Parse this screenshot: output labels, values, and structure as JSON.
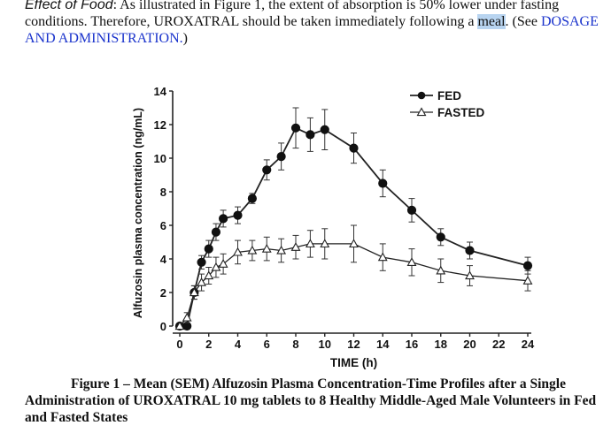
{
  "paragraph": {
    "lead": "Effect of Food",
    "sentence1": ":  As illustrated in Figure 1, the extent of absorption is 50% lower under fasting conditions.  Therefore, UROXATRAL should be taken immediately following a ",
    "highlight": "meal",
    "sentence2": ". (See ",
    "link": "DOSAGE AND ADMINISTRATION.",
    "sentence3": ")"
  },
  "caption": "Figure 1 – Mean (SEM) Alfuzosin Plasma Concentration-Time Profiles after a Single Administration of UROXATRAL 10 mg tablets to 8 Healthy Middle-Aged Male Volunteers in Fed and Fasted States",
  "chart_data": {
    "type": "line",
    "title": "",
    "xlabel": "TIME (h)",
    "ylabel": "Alfuzosin plasma concentration (ng/mL)",
    "xlim": [
      0,
      24
    ],
    "ylim": [
      0,
      14
    ],
    "xticks": [
      0,
      2,
      4,
      6,
      8,
      10,
      12,
      14,
      16,
      18,
      20,
      22,
      24
    ],
    "yticks": [
      0,
      2,
      4,
      6,
      8,
      10,
      12,
      14
    ],
    "legend": "top-right",
    "series": [
      {
        "name": "FED",
        "marker": "filled-circle",
        "x": [
          0,
          0.5,
          1,
          1.5,
          2,
          2.5,
          3,
          4,
          5,
          6,
          7,
          8,
          9,
          10,
          12,
          14,
          16,
          18,
          20,
          24
        ],
        "y": [
          0,
          0,
          2,
          3.8,
          4.6,
          5.6,
          6.4,
          6.6,
          7.6,
          9.3,
          10.1,
          11.8,
          11.4,
          11.7,
          10.6,
          8.5,
          6.9,
          5.3,
          4.5,
          3.6
        ],
        "err": [
          0,
          0,
          0.4,
          0.4,
          0.5,
          0.5,
          0.5,
          0.5,
          0.3,
          0.6,
          0.8,
          1.2,
          1.0,
          1.2,
          0.9,
          0.8,
          0.7,
          0.5,
          0.5,
          0.5
        ]
      },
      {
        "name": "FASTED",
        "marker": "open-triangle",
        "x": [
          0,
          0.5,
          1,
          1.5,
          2,
          2.5,
          3,
          4,
          5,
          6,
          7,
          8,
          9,
          10,
          12,
          14,
          16,
          18,
          20,
          24
        ],
        "y": [
          0,
          0.5,
          2.0,
          2.6,
          3.0,
          3.5,
          3.7,
          4.4,
          4.5,
          4.6,
          4.5,
          4.7,
          4.9,
          4.9,
          4.9,
          4.1,
          3.8,
          3.3,
          3.0,
          2.7
        ],
        "err": [
          0,
          0.3,
          0.4,
          0.5,
          0.5,
          0.6,
          0.6,
          0.7,
          0.6,
          0.7,
          0.7,
          0.7,
          0.8,
          0.9,
          1.1,
          0.8,
          0.8,
          0.7,
          0.6,
          0.6
        ]
      }
    ]
  }
}
